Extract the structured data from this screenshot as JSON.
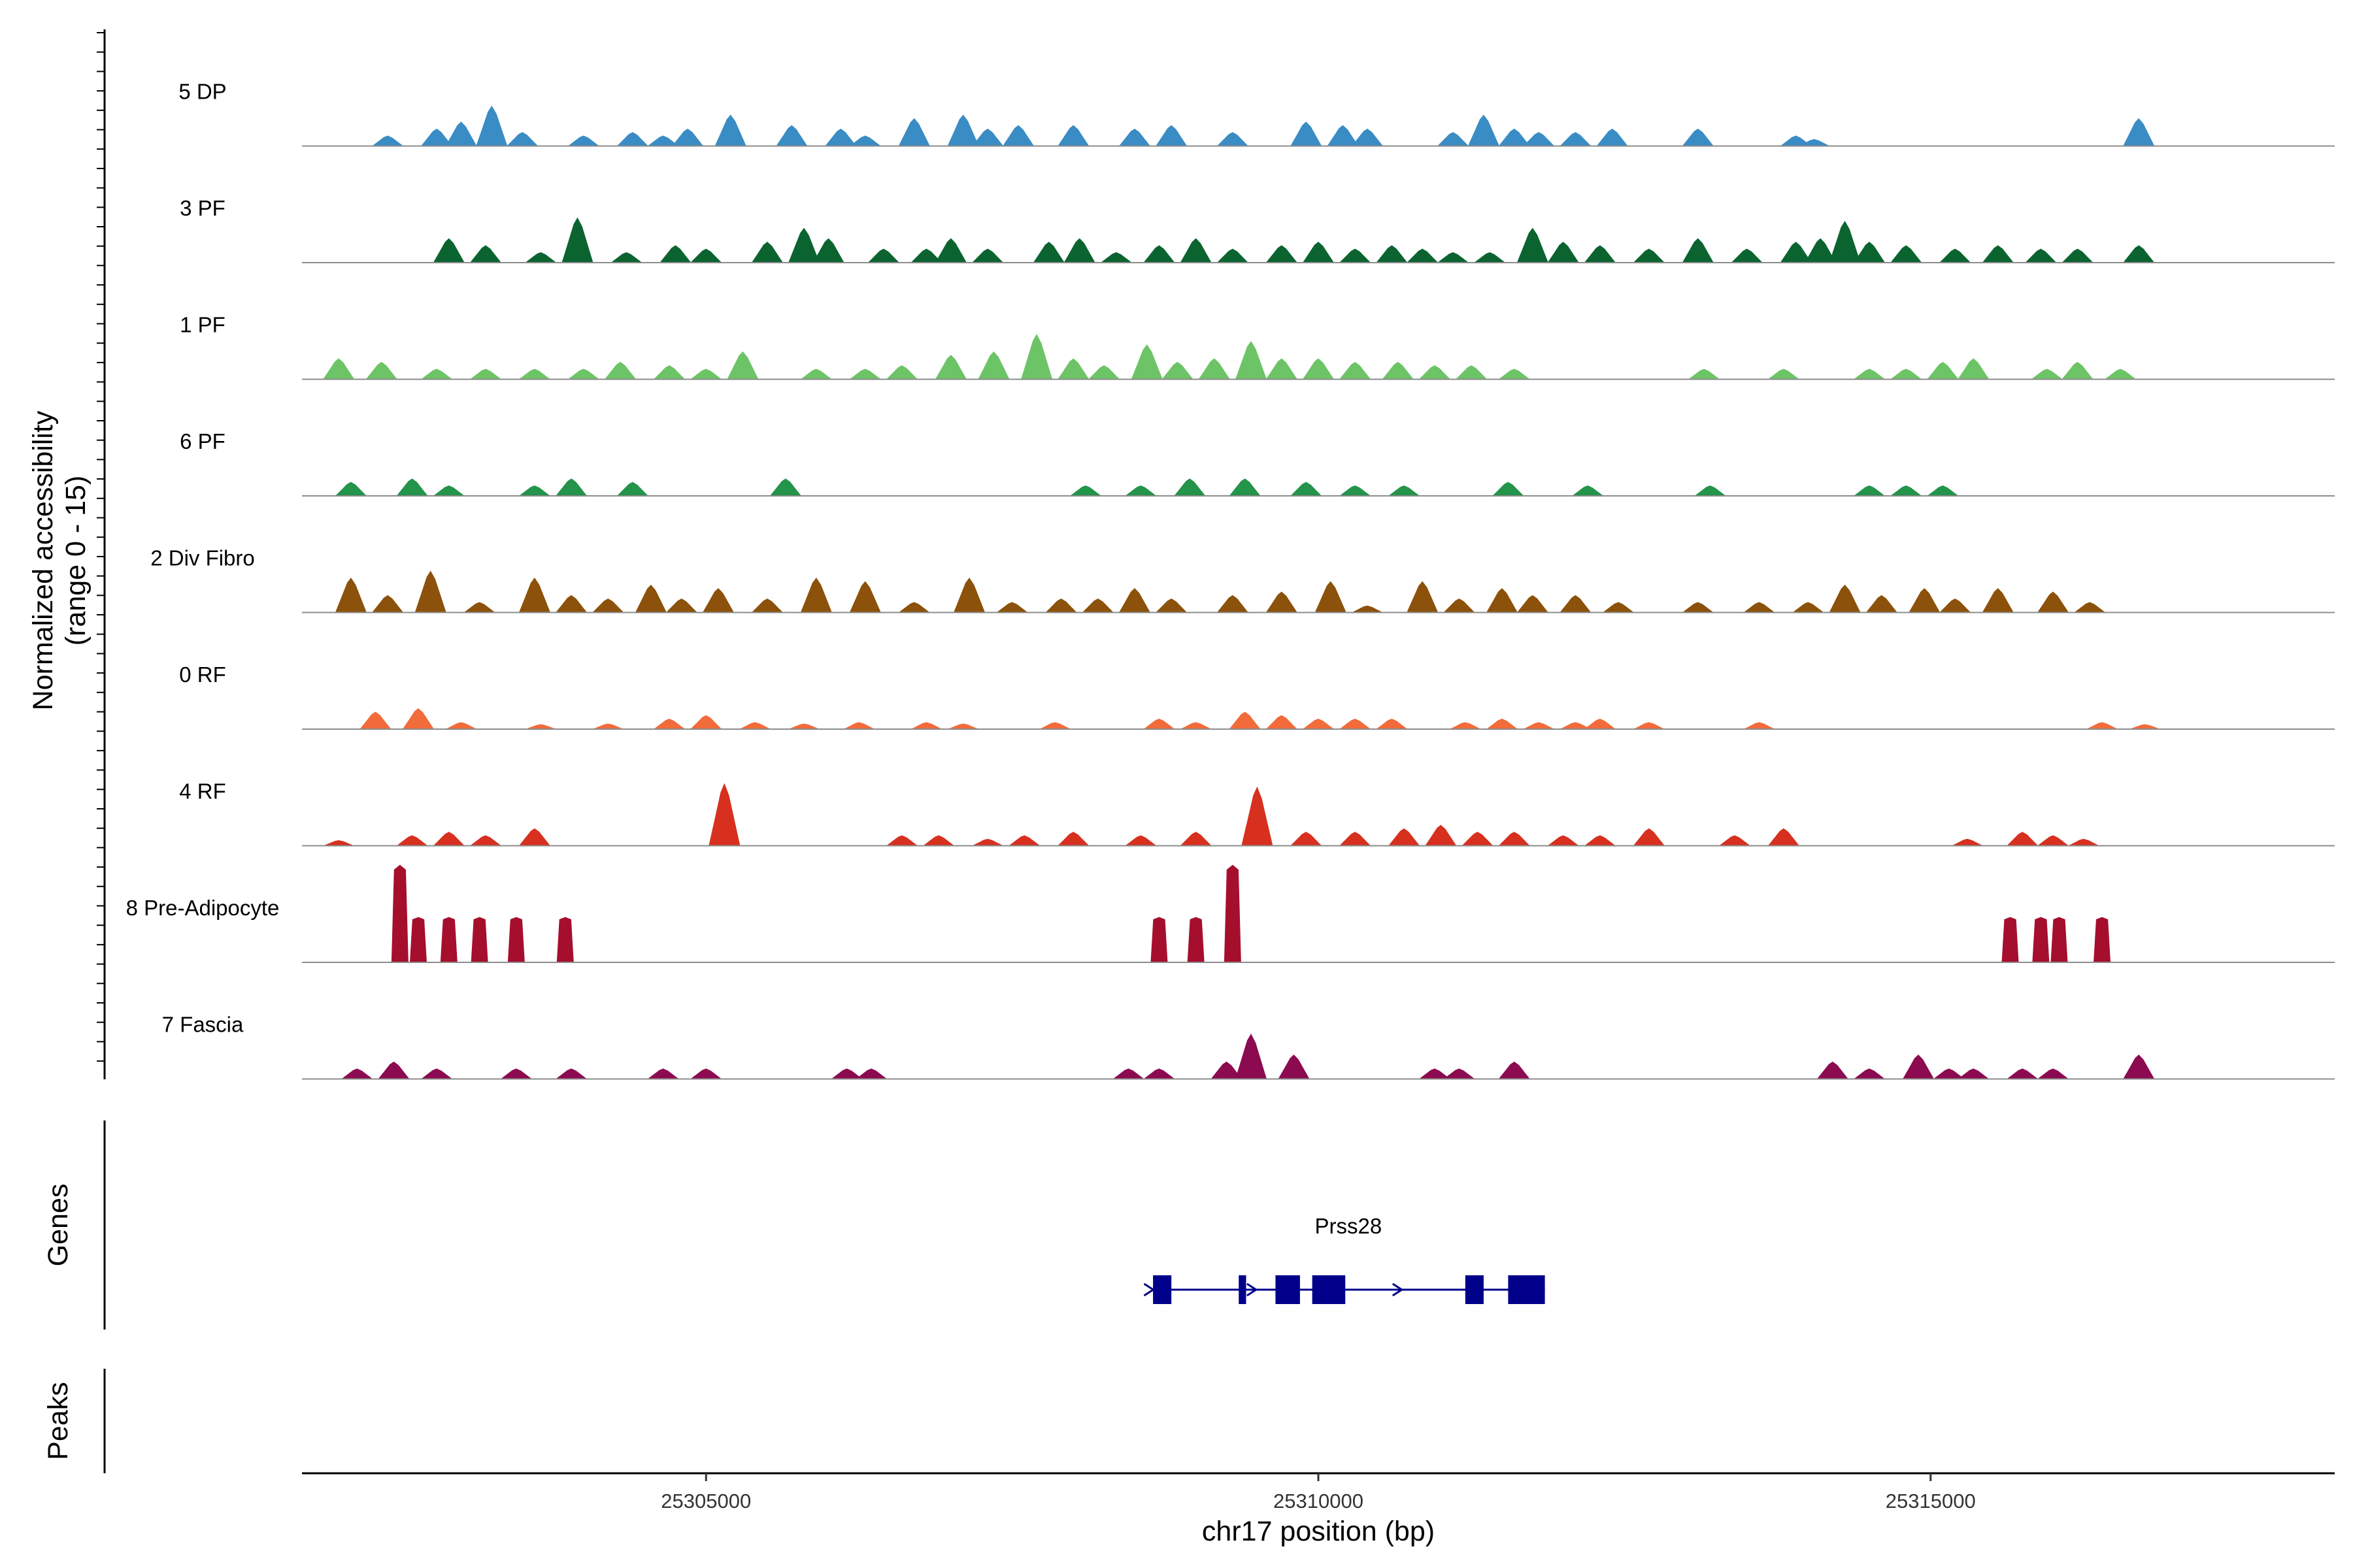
{
  "chart_data": {
    "type": "area",
    "title": "",
    "ylabel_line1": "Normalized accessibility",
    "ylabel_line2": "(range 0 - 15)",
    "ylim": [
      0,
      15
    ],
    "xlabel": "chr17 position (bp)",
    "xlim": [
      25301700,
      25318300
    ],
    "xticks": [
      25305000,
      25310000,
      25315000
    ],
    "xtick_labels": [
      "25305000",
      "25310000",
      "25315000"
    ],
    "tracks_label": "Genes",
    "peaks_label": "Peaks",
    "series": [
      {
        "name": "5 DP",
        "color": "#3a8cc4",
        "peaks": [
          [
            25302400,
            1.5
          ],
          [
            25302800,
            2.5
          ],
          [
            25303000,
            3.5
          ],
          [
            25303250,
            5.8
          ],
          [
            25303500,
            2.0
          ],
          [
            25304000,
            1.5
          ],
          [
            25304400,
            2.0
          ],
          [
            25304650,
            1.5
          ],
          [
            25304850,
            2.5
          ],
          [
            25305200,
            4.5
          ],
          [
            25305700,
            3.0
          ],
          [
            25306100,
            2.5
          ],
          [
            25306300,
            1.5
          ],
          [
            25306700,
            4.0
          ],
          [
            25307100,
            4.5
          ],
          [
            25307300,
            2.5
          ],
          [
            25307550,
            3.0
          ],
          [
            25308000,
            3.0
          ],
          [
            25308500,
            2.5
          ],
          [
            25308800,
            3.0
          ],
          [
            25309300,
            2.0
          ],
          [
            25309900,
            3.5
          ],
          [
            25310200,
            3.0
          ],
          [
            25310400,
            2.5
          ],
          [
            25311100,
            2.0
          ],
          [
            25311350,
            4.5
          ],
          [
            25311600,
            2.5
          ],
          [
            25311800,
            2.0
          ],
          [
            25312100,
            2.0
          ],
          [
            25312400,
            2.5
          ],
          [
            25313100,
            2.5
          ],
          [
            25313900,
            1.5
          ],
          [
            25314050,
            1.0
          ],
          [
            25316700,
            4.0
          ]
        ]
      },
      {
        "name": "3 PF",
        "color": "#0b6430",
        "peaks": [
          [
            25302900,
            3.5
          ],
          [
            25303200,
            2.5
          ],
          [
            25303650,
            1.5
          ],
          [
            25303950,
            6.5
          ],
          [
            25304350,
            1.5
          ],
          [
            25304750,
            2.5
          ],
          [
            25305000,
            2.0
          ],
          [
            25305500,
            3.0
          ],
          [
            25305800,
            5.0
          ],
          [
            25306000,
            3.5
          ],
          [
            25306450,
            2.0
          ],
          [
            25306800,
            2.0
          ],
          [
            25307000,
            3.5
          ],
          [
            25307300,
            2.0
          ],
          [
            25307800,
            3.0
          ],
          [
            25308050,
            3.5
          ],
          [
            25308350,
            1.5
          ],
          [
            25308700,
            2.5
          ],
          [
            25309000,
            3.5
          ],
          [
            25309300,
            2.0
          ],
          [
            25309700,
            2.5
          ],
          [
            25310000,
            3.0
          ],
          [
            25310300,
            2.0
          ],
          [
            25310600,
            2.5
          ],
          [
            25310850,
            2.0
          ],
          [
            25311100,
            1.5
          ],
          [
            25311400,
            1.5
          ],
          [
            25311750,
            5.0
          ],
          [
            25312000,
            3.0
          ],
          [
            25312300,
            2.5
          ],
          [
            25312700,
            2.0
          ],
          [
            25313100,
            3.5
          ],
          [
            25313500,
            2.0
          ],
          [
            25313900,
            3.0
          ],
          [
            25314100,
            3.5
          ],
          [
            25314300,
            6.0
          ],
          [
            25314500,
            3.0
          ],
          [
            25314800,
            2.5
          ],
          [
            25315200,
            2.0
          ],
          [
            25315550,
            2.5
          ],
          [
            25315900,
            2.0
          ],
          [
            25316200,
            2.0
          ],
          [
            25316700,
            2.5
          ]
        ]
      },
      {
        "name": "1 PF",
        "color": "#6dc466",
        "peaks": [
          [
            25302000,
            3.0
          ],
          [
            25302350,
            2.5
          ],
          [
            25302800,
            1.5
          ],
          [
            25303200,
            1.5
          ],
          [
            25303600,
            1.5
          ],
          [
            25304000,
            1.5
          ],
          [
            25304300,
            2.5
          ],
          [
            25304700,
            2.0
          ],
          [
            25305000,
            1.5
          ],
          [
            25305300,
            4.0
          ],
          [
            25305900,
            1.5
          ],
          [
            25306300,
            1.5
          ],
          [
            25306600,
            2.0
          ],
          [
            25307000,
            3.5
          ],
          [
            25307350,
            4.0
          ],
          [
            25307700,
            6.5
          ],
          [
            25308000,
            3.0
          ],
          [
            25308250,
            2.0
          ],
          [
            25308600,
            5.0
          ],
          [
            25308850,
            2.5
          ],
          [
            25309150,
            3.0
          ],
          [
            25309450,
            5.5
          ],
          [
            25309700,
            3.0
          ],
          [
            25310000,
            3.0
          ],
          [
            25310300,
            2.5
          ],
          [
            25310650,
            2.5
          ],
          [
            25310950,
            2.0
          ],
          [
            25311250,
            2.0
          ],
          [
            25311600,
            1.5
          ],
          [
            25313150,
            1.5
          ],
          [
            25313800,
            1.5
          ],
          [
            25314500,
            1.5
          ],
          [
            25314800,
            1.5
          ],
          [
            25315100,
            2.5
          ],
          [
            25315350,
            3.0
          ],
          [
            25315950,
            1.5
          ],
          [
            25316200,
            2.5
          ],
          [
            25316550,
            1.5
          ]
        ]
      },
      {
        "name": "6 PF",
        "color": "#23944a",
        "peaks": [
          [
            25302100,
            2.0
          ],
          [
            25302600,
            2.5
          ],
          [
            25302900,
            1.5
          ],
          [
            25303600,
            1.5
          ],
          [
            25303900,
            2.5
          ],
          [
            25304400,
            2.0
          ],
          [
            25305650,
            2.5
          ],
          [
            25308100,
            1.5
          ],
          [
            25308550,
            1.5
          ],
          [
            25308950,
            2.5
          ],
          [
            25309400,
            2.5
          ],
          [
            25309900,
            2.0
          ],
          [
            25310300,
            1.5
          ],
          [
            25310700,
            1.5
          ],
          [
            25311550,
            2.0
          ],
          [
            25312200,
            1.5
          ],
          [
            25313200,
            1.5
          ],
          [
            25314500,
            1.5
          ],
          [
            25314800,
            1.5
          ],
          [
            25315100,
            1.5
          ]
        ]
      },
      {
        "name": "2 Div Fibro",
        "color": "#8c510a",
        "peaks": [
          [
            25302100,
            5.0
          ],
          [
            25302400,
            2.5
          ],
          [
            25302750,
            6.0
          ],
          [
            25303150,
            1.5
          ],
          [
            25303600,
            5.0
          ],
          [
            25303900,
            2.5
          ],
          [
            25304200,
            2.0
          ],
          [
            25304550,
            4.0
          ],
          [
            25304800,
            2.0
          ],
          [
            25305100,
            3.5
          ],
          [
            25305500,
            2.0
          ],
          [
            25305900,
            5.0
          ],
          [
            25306300,
            4.5
          ],
          [
            25306700,
            1.5
          ],
          [
            25307150,
            5.0
          ],
          [
            25307500,
            1.5
          ],
          [
            25307900,
            2.0
          ],
          [
            25308200,
            2.0
          ],
          [
            25308500,
            3.5
          ],
          [
            25308800,
            2.0
          ],
          [
            25309300,
            2.5
          ],
          [
            25309700,
            3.0
          ],
          [
            25310100,
            4.5
          ],
          [
            25310400,
            1.0
          ],
          [
            25310850,
            4.5
          ],
          [
            25311150,
            2.0
          ],
          [
            25311500,
            3.5
          ],
          [
            25311750,
            2.5
          ],
          [
            25312100,
            2.5
          ],
          [
            25312450,
            1.5
          ],
          [
            25313100,
            1.5
          ],
          [
            25313600,
            1.5
          ],
          [
            25314000,
            1.5
          ],
          [
            25314300,
            4.0
          ],
          [
            25314600,
            2.5
          ],
          [
            25314950,
            3.5
          ],
          [
            25315200,
            2.0
          ],
          [
            25315550,
            3.5
          ],
          [
            25316000,
            3.0
          ],
          [
            25316300,
            1.5
          ]
        ]
      },
      {
        "name": "0 RF",
        "color": "#f26b3a",
        "peaks": [
          [
            25302300,
            2.5
          ],
          [
            25302650,
            3.0
          ],
          [
            25303000,
            1.0
          ],
          [
            25303650,
            0.7
          ],
          [
            25304200,
            0.8
          ],
          [
            25304700,
            1.5
          ],
          [
            25305000,
            2.0
          ],
          [
            25305400,
            1.0
          ],
          [
            25305800,
            0.8
          ],
          [
            25306250,
            1.0
          ],
          [
            25306800,
            1.0
          ],
          [
            25307100,
            0.8
          ],
          [
            25307850,
            1.0
          ],
          [
            25308700,
            1.5
          ],
          [
            25309000,
            1.0
          ],
          [
            25309400,
            2.5
          ],
          [
            25309700,
            2.0
          ],
          [
            25310000,
            1.5
          ],
          [
            25310300,
            1.5
          ],
          [
            25310600,
            1.5
          ],
          [
            25311200,
            1.0
          ],
          [
            25311500,
            1.5
          ],
          [
            25311800,
            1.0
          ],
          [
            25312100,
            1.0
          ],
          [
            25312300,
            1.5
          ],
          [
            25312700,
            1.0
          ],
          [
            25313600,
            1.0
          ],
          [
            25316400,
            1.0
          ],
          [
            25316750,
            0.7
          ]
        ]
      },
      {
        "name": "4 RF",
        "color": "#d7301f",
        "peaks": [
          [
            25302000,
            0.8
          ],
          [
            25302600,
            1.5
          ],
          [
            25302900,
            2.0
          ],
          [
            25303200,
            1.5
          ],
          [
            25303600,
            2.5
          ],
          [
            25305150,
            9.0
          ],
          [
            25306600,
            1.5
          ],
          [
            25306900,
            1.5
          ],
          [
            25307300,
            1.0
          ],
          [
            25307600,
            1.5
          ],
          [
            25308000,
            2.0
          ],
          [
            25308550,
            1.5
          ],
          [
            25309000,
            2.0
          ],
          [
            25309500,
            8.5
          ],
          [
            25309900,
            2.0
          ],
          [
            25310300,
            2.0
          ],
          [
            25310700,
            2.5
          ],
          [
            25311000,
            3.0
          ],
          [
            25311300,
            2.0
          ],
          [
            25311600,
            2.0
          ],
          [
            25312000,
            1.5
          ],
          [
            25312300,
            1.5
          ],
          [
            25312700,
            2.5
          ],
          [
            25313400,
            1.5
          ],
          [
            25313800,
            2.5
          ],
          [
            25315300,
            1.0
          ],
          [
            25315750,
            2.0
          ],
          [
            25316000,
            1.5
          ],
          [
            25316250,
            1.0
          ]
        ]
      },
      {
        "name": "8 Pre-Adipocyte",
        "color": "#a50f2d",
        "peaks": [
          [
            25302500,
            14.0
          ],
          [
            25302650,
            6.5
          ],
          [
            25302900,
            6.5
          ],
          [
            25303150,
            6.5
          ],
          [
            25303450,
            6.5
          ],
          [
            25303850,
            6.5
          ],
          [
            25308700,
            6.5
          ],
          [
            25309000,
            6.5
          ],
          [
            25309300,
            14.0
          ],
          [
            25315650,
            6.5
          ],
          [
            25315900,
            6.5
          ],
          [
            25316050,
            6.5
          ],
          [
            25316400,
            6.5
          ]
        ]
      },
      {
        "name": "7 Fascia",
        "color": "#8b0a50",
        "peaks": [
          [
            25302150,
            1.5
          ],
          [
            25302450,
            2.5
          ],
          [
            25302800,
            1.5
          ],
          [
            25303450,
            1.5
          ],
          [
            25303900,
            1.5
          ],
          [
            25304650,
            1.5
          ],
          [
            25305000,
            1.5
          ],
          [
            25306150,
            1.5
          ],
          [
            25306350,
            1.5
          ],
          [
            25308450,
            1.5
          ],
          [
            25308700,
            1.5
          ],
          [
            25309250,
            2.5
          ],
          [
            25309450,
            6.5
          ],
          [
            25309800,
            3.5
          ],
          [
            25310950,
            1.5
          ],
          [
            25311150,
            1.5
          ],
          [
            25311600,
            2.5
          ],
          [
            25314200,
            2.5
          ],
          [
            25314500,
            1.5
          ],
          [
            25314900,
            3.5
          ],
          [
            25315150,
            1.5
          ],
          [
            25315350,
            1.5
          ],
          [
            25315750,
            1.5
          ],
          [
            25316000,
            1.5
          ],
          [
            25316700,
            3.5
          ]
        ]
      }
    ],
    "gene": {
      "name": "Prss28",
      "color": "#00008b",
      "start": 25308650,
      "end": 25311850,
      "strand": "+",
      "exons": [
        [
          25308650,
          25308800
        ],
        [
          25309350,
          25309410
        ],
        [
          25309650,
          25309850
        ],
        [
          25309950,
          25310220
        ],
        [
          25311200,
          25311350
        ],
        [
          25311550,
          25311850
        ]
      ]
    }
  }
}
